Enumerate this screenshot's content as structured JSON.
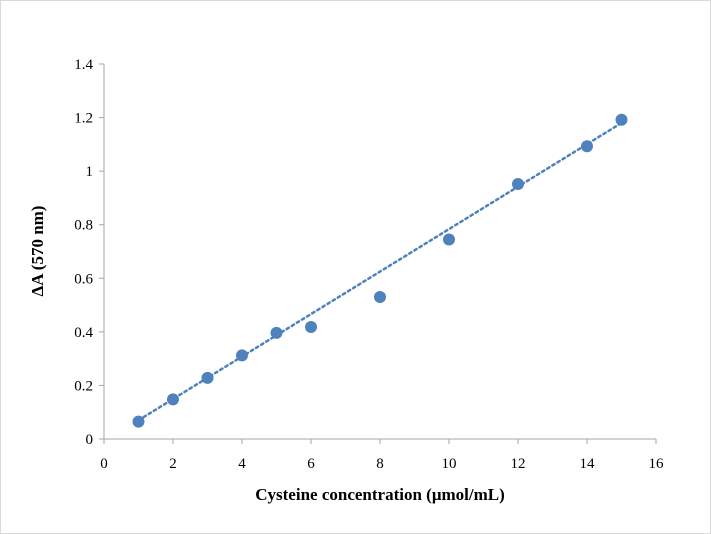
{
  "chart_data": {
    "type": "scatter",
    "title": "",
    "xlabel": "Cysteine concentration (μmol/mL)",
    "ylabel": "ΔA (570 nm)",
    "xlim": [
      0,
      16
    ],
    "ylim": [
      0,
      1.4
    ],
    "x_ticks": [
      "0",
      "2",
      "4",
      "6",
      "8",
      "10",
      "12",
      "14",
      "16"
    ],
    "y_ticks": [
      "0",
      "0.2",
      "0.4",
      "0.6",
      "0.8",
      "1",
      "1.2",
      "1.4"
    ],
    "grid": false,
    "legend": "none",
    "series": [
      {
        "color": "#4f81bd",
        "points": [
          {
            "x": 1,
            "y": 0.065
          },
          {
            "x": 2,
            "y": 0.148
          },
          {
            "x": 3,
            "y": 0.228
          },
          {
            "x": 4,
            "y": 0.312
          },
          {
            "x": 5,
            "y": 0.396
          },
          {
            "x": 6,
            "y": 0.418
          },
          {
            "x": 8,
            "y": 0.53
          },
          {
            "x": 10,
            "y": 0.745
          },
          {
            "x": 12,
            "y": 0.952
          },
          {
            "x": 14,
            "y": 1.093
          },
          {
            "x": 15,
            "y": 1.192
          }
        ]
      }
    ],
    "trendline": {
      "style": "dotted",
      "color": "#4f81bd",
      "from": {
        "x": 1,
        "y": 0.07
      },
      "to": {
        "x": 15,
        "y": 1.18
      }
    }
  }
}
